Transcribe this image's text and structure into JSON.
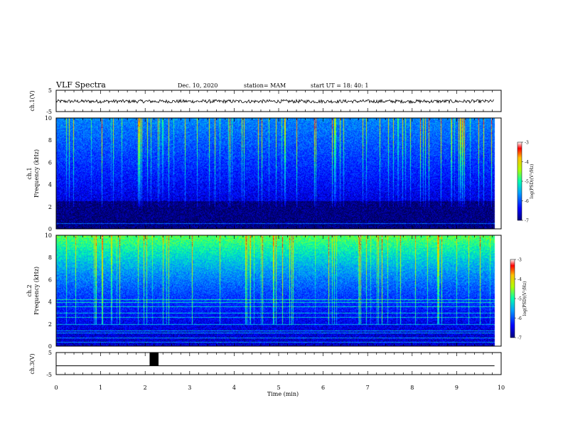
{
  "header": {
    "title": "VLF Spectra",
    "date": "Dec. 10, 2020",
    "station": "station= MAM",
    "start": "start  UT  =   18: 40: 1"
  },
  "chart_data": [
    {
      "type": "line",
      "panel": "ch1-voltage",
      "ylabel": "ch.1(V)",
      "ylim": [
        -5,
        5
      ],
      "yticks": [
        "5",
        "-5"
      ],
      "trace_level": -0.2,
      "trace_noise": 0.2
    },
    {
      "type": "heatmap",
      "panel": "ch1-spectrogram",
      "ylabel": [
        "ch.1",
        "Frequency  (kHz)"
      ],
      "ylim": [
        0,
        10
      ],
      "yticks": [
        "0",
        "2",
        "4",
        "6",
        "8",
        "10"
      ],
      "colorbar": {
        "label": "log(PSD)(V²/Hz)",
        "range": [
          -7,
          -3
        ],
        "ticks": [
          "-3",
          "-4",
          "-5",
          "-6",
          "-7"
        ]
      },
      "horizontal_lines_khz": [
        0.5
      ]
    },
    {
      "type": "heatmap",
      "panel": "ch2-spectrogram",
      "ylabel": [
        "ch.2",
        "Frequency  (kHz)"
      ],
      "ylim": [
        0,
        10
      ],
      "yticks": [
        "0",
        "2",
        "4",
        "6",
        "8",
        "10"
      ],
      "colorbar": {
        "label": "log(PSD)(V²/Hz)",
        "range": [
          -7,
          -3
        ],
        "ticks": [
          "-3",
          "-4",
          "-5",
          "-6",
          "-7"
        ]
      },
      "horizontal_lines_khz": [
        0.4,
        0.8,
        1.2,
        1.4,
        2.0,
        2.6,
        3.0,
        3.6,
        4.0,
        4.2
      ]
    },
    {
      "type": "line",
      "panel": "ch3-voltage",
      "ylabel": "ch.3(V)",
      "ylim": [
        -5,
        5
      ],
      "yticks": [
        "5",
        "-5"
      ],
      "baseline": -1,
      "pulse": {
        "x_start": 2.1,
        "x_end": 2.3,
        "high": 5
      }
    }
  ],
  "time_axis": {
    "xlabel": "Time  (min)",
    "xlim": [
      0,
      10
    ],
    "data_end": 9.85,
    "ticks": [
      "0",
      "1",
      "2",
      "3",
      "4",
      "5",
      "6",
      "7",
      "8",
      "9",
      "10"
    ]
  },
  "colors": {
    "frame": "#000000",
    "background": "#ffffff"
  }
}
